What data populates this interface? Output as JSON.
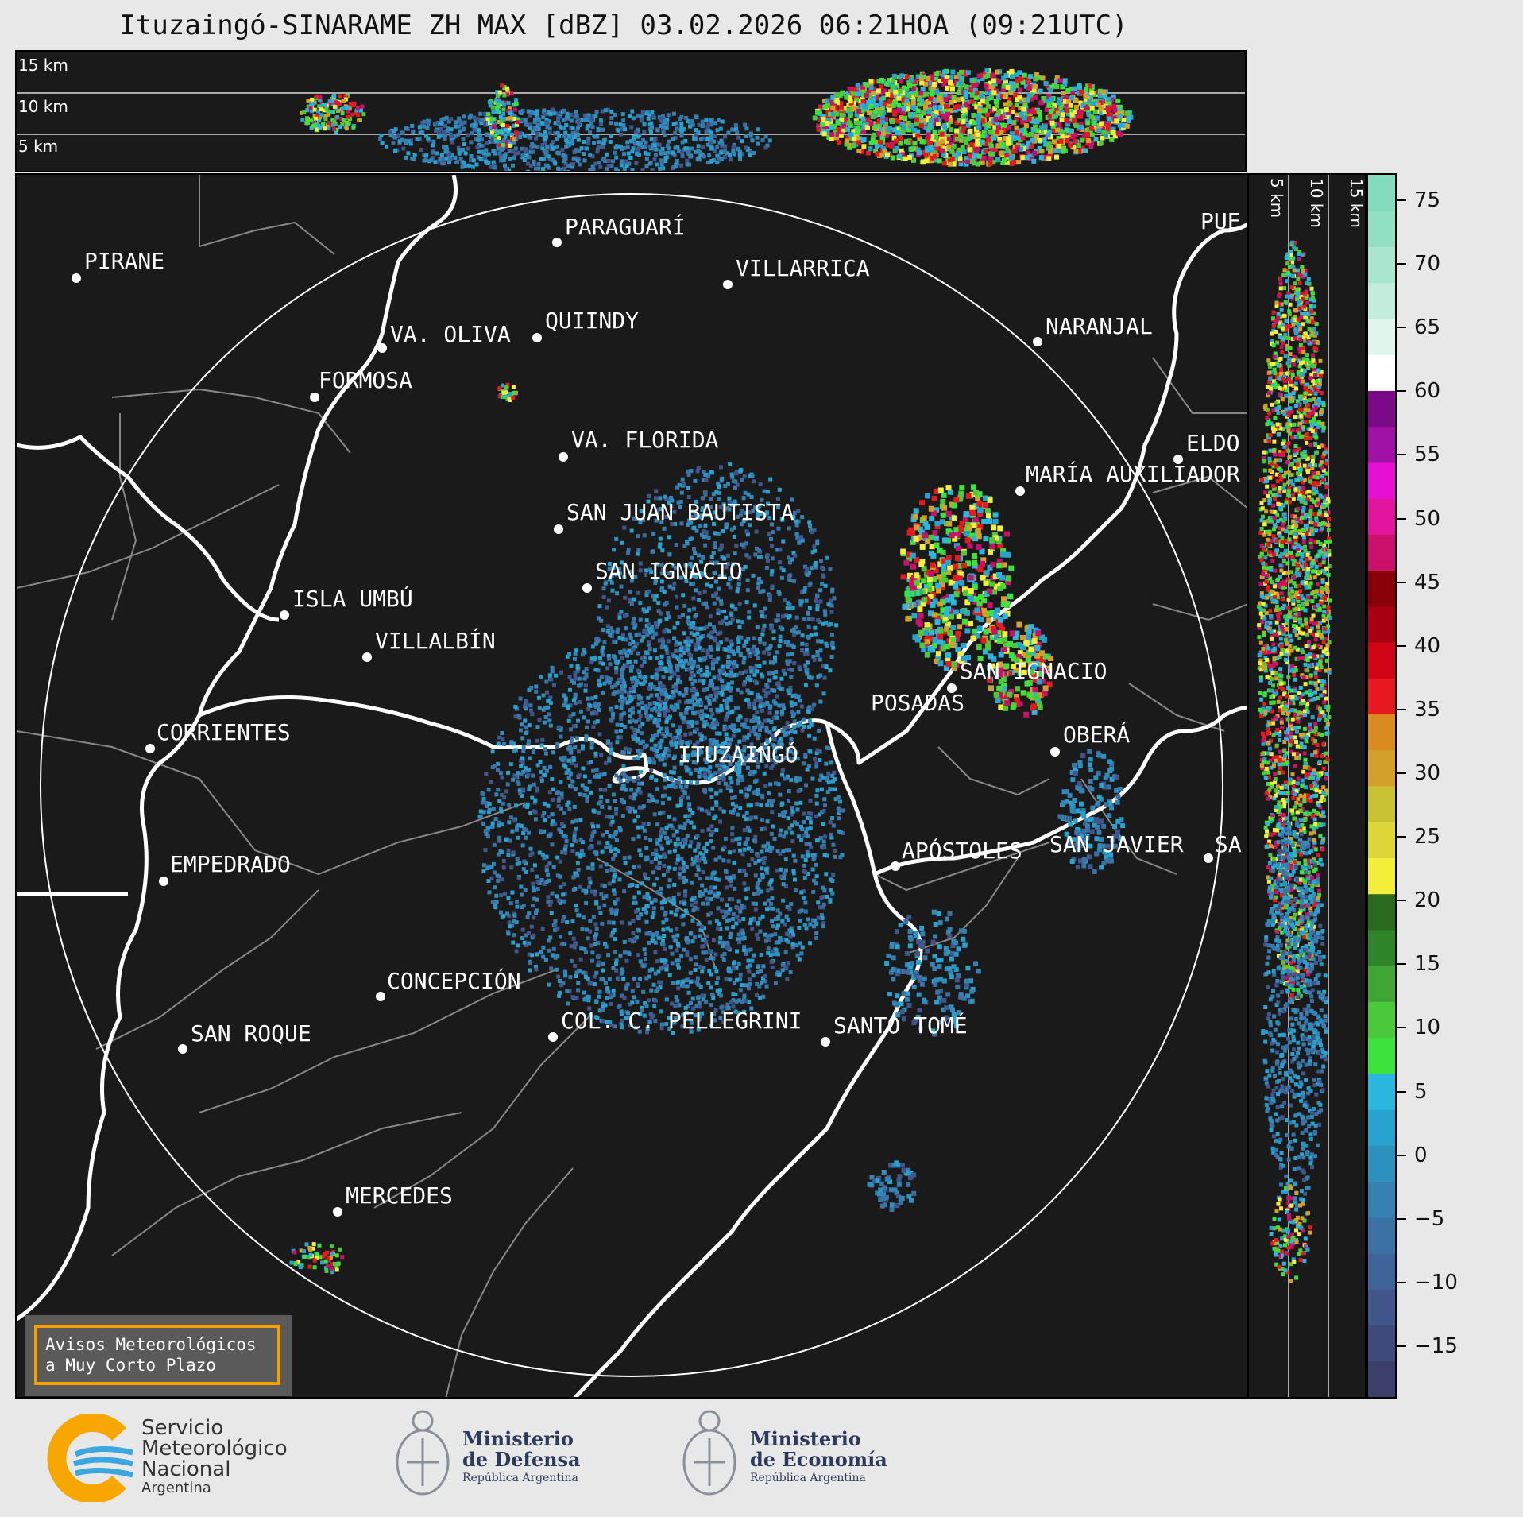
{
  "title": "Ituzaingó-SINARAME ZH MAX [dBZ] 03.02.2026 06:21HOA (09:21UTC)",
  "top_panel": {
    "height_labels": [
      "15 km",
      "10 km",
      "5 km"
    ]
  },
  "side_panel": {
    "height_labels": [
      "5 km",
      "10 km",
      "15 km"
    ]
  },
  "map": {
    "cities": [
      {
        "name": "PIRANE"
      },
      {
        "name": "PARAGUARÍ"
      },
      {
        "name": "VILLARRICA"
      },
      {
        "name": "QUIINDY"
      },
      {
        "name": "VA. OLIVA"
      },
      {
        "name": "NARANJAL"
      },
      {
        "name": "FORMOSA"
      },
      {
        "name": "PUE"
      },
      {
        "name": "VA. FLORIDA"
      },
      {
        "name": "ELDO"
      },
      {
        "name": "MARÍA AUXILIADOR"
      },
      {
        "name": "SAN JUAN BAUTISTA"
      },
      {
        "name": "SAN IGNACIO"
      },
      {
        "name": "ISLA UMBÚ"
      },
      {
        "name": "VILLALBÍN"
      },
      {
        "name": "SAN IGNACIO"
      },
      {
        "name": "POSADAS"
      },
      {
        "name": "CORRIENTES"
      },
      {
        "name": "ITUZAINGÓ"
      },
      {
        "name": "OBERÁ"
      },
      {
        "name": "APÓSTOLES"
      },
      {
        "name": "SAN JAVIER"
      },
      {
        "name": "SA"
      },
      {
        "name": "EMPEDRADO"
      },
      {
        "name": "CONCEPCIÓN"
      },
      {
        "name": "COL. C. PELLEGRINI"
      },
      {
        "name": "SANTO TOMÉ"
      },
      {
        "name": "SAN ROQUE"
      },
      {
        "name": "MERCEDES"
      }
    ],
    "warning": {
      "line1": "Avisos Meteorológicos",
      "line2": "a Muy Corto Plazo"
    }
  },
  "colorbar": {
    "ticks": [
      "75",
      "70",
      "65",
      "60",
      "55",
      "50",
      "45",
      "40",
      "35",
      "30",
      "25",
      "20",
      "15",
      "10",
      "5",
      "0",
      "−5",
      "−10",
      "−15"
    ],
    "colors": [
      "#3c3f6a",
      "#3f4a7c",
      "#41568b",
      "#3f6499",
      "#3b72a6",
      "#3581b3",
      "#2d91c0",
      "#28a2cf",
      "#2ab6de",
      "#3de23c",
      "#4bc83b",
      "#3fa535",
      "#2f8529",
      "#2a6a1f",
      "#f3ee3b",
      "#dcd63a",
      "#c8c234",
      "#d4a02b",
      "#d98b21",
      "#e8181f",
      "#cf0515",
      "#a80010",
      "#8a0008",
      "#c9106a",
      "#e3159e",
      "#e510d1",
      "#a012a4",
      "#7a0a88",
      "#ffffff",
      "#e0f5ec",
      "#c2eddc",
      "#a8e6cf",
      "#92e0c4",
      "#84dcbe"
    ],
    "vmin": -19,
    "vmax": 77
  },
  "footer": {
    "smn": {
      "line1": "Servicio",
      "line2": "Meteorológico",
      "line3": "Nacional",
      "line4": "Argentina"
    },
    "defensa": {
      "line1": "Ministerio",
      "line2": "de Defensa",
      "line3": "República Argentina"
    },
    "economia": {
      "line1": "Ministerio",
      "line2": "de Economía",
      "line3": "República Argentina"
    }
  }
}
